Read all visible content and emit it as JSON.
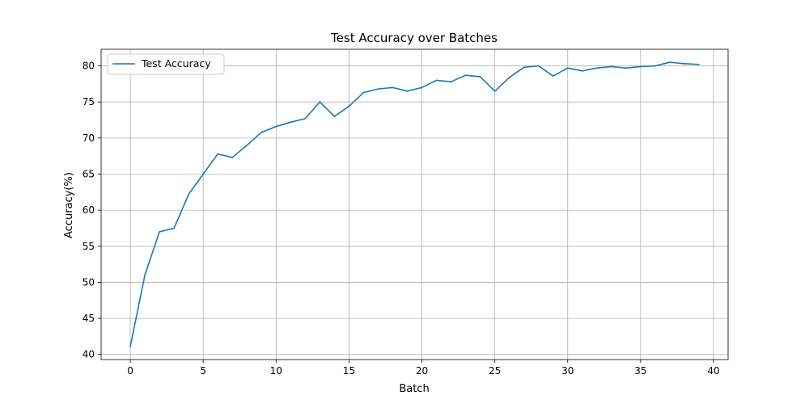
{
  "chart_data": {
    "type": "line",
    "title": "Test Accuracy over Batches",
    "xlabel": "Batch",
    "ylabel": "Accuracy(%)",
    "xlim": [
      -2,
      41
    ],
    "ylim": [
      39.3,
      82.3
    ],
    "xticks": [
      0,
      5,
      10,
      15,
      20,
      25,
      30,
      35,
      40
    ],
    "yticks": [
      40,
      45,
      50,
      55,
      60,
      65,
      70,
      75,
      80
    ],
    "grid": true,
    "legend": {
      "placement": "top-left",
      "entries": [
        "Test Accuracy"
      ]
    },
    "series": [
      {
        "name": "Test Accuracy",
        "color": "#1f77b4",
        "x": [
          0,
          1,
          2,
          3,
          4,
          5,
          6,
          7,
          8,
          9,
          10,
          11,
          12,
          13,
          14,
          15,
          16,
          17,
          18,
          19,
          20,
          21,
          22,
          23,
          24,
          25,
          26,
          27,
          28,
          29,
          30,
          31,
          32,
          33,
          34,
          35,
          36,
          37,
          38,
          39
        ],
        "y": [
          41.1,
          51.0,
          57.0,
          57.5,
          62.2,
          65.0,
          67.8,
          67.3,
          69.0,
          70.8,
          71.6,
          72.2,
          72.7,
          75.0,
          73.0,
          74.4,
          76.3,
          76.8,
          77.0,
          76.5,
          77.0,
          78.0,
          77.8,
          78.7,
          78.5,
          76.5,
          78.4,
          79.8,
          80.0,
          78.6,
          79.7,
          79.3,
          79.7,
          79.9,
          79.7,
          79.9,
          80.0,
          80.5,
          80.3,
          80.2
        ]
      }
    ]
  }
}
